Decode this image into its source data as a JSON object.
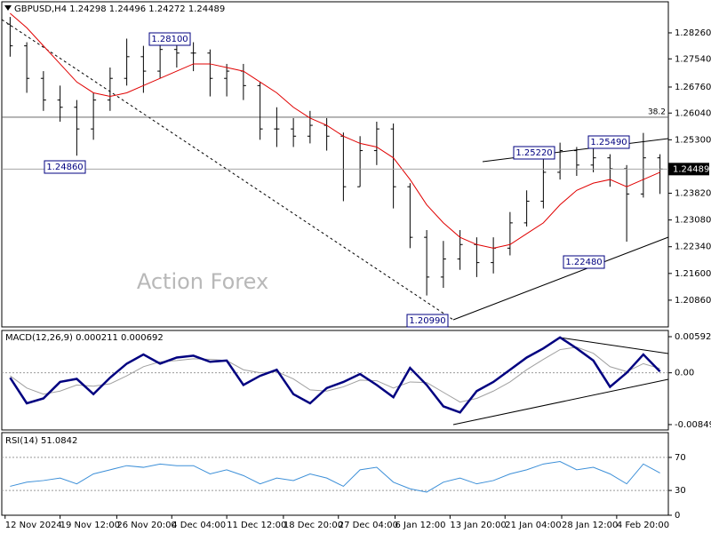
{
  "chart_data": [
    {
      "type": "ohlc",
      "title": "GBPUSD,H4  1.24298 1.24496 1.24272 1.24489",
      "watermark": "Action Forex",
      "color": "#000000",
      "open": [
        1.285,
        1.279,
        1.27,
        1.264,
        1.262,
        1.256,
        1.264,
        1.27,
        1.276,
        1.272,
        1.278,
        1.277,
        1.277,
        1.27,
        1.272,
        1.268,
        1.256,
        1.256,
        1.254,
        1.257,
        1.254,
        1.24,
        1.25,
        1.256,
        1.24,
        1.226,
        1.215,
        1.22,
        1.224,
        1.219,
        1.223,
        1.23,
        1.236,
        1.244,
        1.25,
        1.246,
        1.248,
        1.245,
        1.238,
        1.248
      ],
      "high": [
        1.287,
        1.28,
        1.272,
        1.268,
        1.264,
        1.266,
        1.273,
        1.281,
        1.279,
        1.28,
        1.281,
        1.28,
        1.278,
        1.274,
        1.274,
        1.269,
        1.262,
        1.259,
        1.261,
        1.259,
        1.255,
        1.254,
        1.258,
        1.2575,
        1.241,
        1.228,
        1.225,
        1.228,
        1.226,
        1.226,
        1.233,
        1.239,
        1.248,
        1.2522,
        1.251,
        1.251,
        1.249,
        1.246,
        1.2549,
        1.249
      ],
      "low": [
        1.276,
        1.266,
        1.261,
        1.258,
        1.2486,
        1.253,
        1.261,
        1.268,
        1.266,
        1.27,
        1.273,
        1.272,
        1.265,
        1.265,
        1.264,
        1.253,
        1.251,
        1.251,
        1.252,
        1.25,
        1.236,
        1.24,
        1.246,
        1.234,
        1.223,
        1.2099,
        1.212,
        1.217,
        1.215,
        1.216,
        1.221,
        1.229,
        1.234,
        1.242,
        1.243,
        1.244,
        1.24,
        1.2248,
        1.237,
        1.238
      ],
      "close": [
        1.279,
        1.27,
        1.264,
        1.262,
        1.256,
        1.264,
        1.27,
        1.276,
        1.272,
        1.278,
        1.277,
        1.277,
        1.27,
        1.272,
        1.268,
        1.256,
        1.256,
        1.254,
        1.257,
        1.254,
        1.24,
        1.25,
        1.256,
        1.24,
        1.226,
        1.215,
        1.22,
        1.224,
        1.219,
        1.223,
        1.23,
        1.236,
        1.244,
        1.25,
        1.246,
        1.248,
        1.245,
        1.238,
        1.248,
        1.24489
      ],
      "ma_color": "#e00000",
      "ma_values": [
        1.288,
        1.284,
        1.279,
        1.274,
        1.269,
        1.266,
        1.265,
        1.266,
        1.268,
        1.27,
        1.272,
        1.274,
        1.274,
        1.273,
        1.272,
        1.269,
        1.266,
        1.262,
        1.259,
        1.257,
        1.254,
        1.252,
        1.251,
        1.248,
        1.242,
        1.235,
        1.23,
        1.226,
        1.224,
        1.223,
        1.224,
        1.227,
        1.23,
        1.235,
        1.239,
        1.241,
        1.242,
        1.24,
        1.242,
        1.244
      ],
      "annotations": [
        {
          "value": 1.281,
          "label": "1.28100"
        },
        {
          "value": 1.2486,
          "label": "1.24860"
        },
        {
          "value": 1.2522,
          "label": "1.25220"
        },
        {
          "value": 1.2549,
          "label": "1.25490"
        },
        {
          "value": 1.2248,
          "label": "1.22480"
        },
        {
          "value": 1.2099,
          "label": "1.20990"
        }
      ],
      "fib_level": {
        "value": 1.25925,
        "label": "38.2"
      },
      "last_price": 1.24489,
      "ylim": [
        1.2012,
        1.2912
      ],
      "yticks": [
        {
          "value": 1.2826,
          "label": "1.28260"
        },
        {
          "value": 1.2754,
          "label": "1.27540"
        },
        {
          "value": 1.2676,
          "label": "1.26760"
        },
        {
          "value": 1.2604,
          "label": "1.26040"
        },
        {
          "value": 1.253,
          "label": "1.25300"
        },
        {
          "value": 1.2382,
          "label": "1.23820"
        },
        {
          "value": 1.2308,
          "label": "1.23080"
        },
        {
          "value": 1.2234,
          "label": "1.22340"
        },
        {
          "value": 1.216,
          "label": "1.21600"
        },
        {
          "value": 1.2086,
          "label": "1.20860"
        }
      ],
      "xlim": [
        -0.5,
        39.5
      ],
      "xticks": [
        {
          "value": -0.3,
          "label": "12 Nov 2024"
        },
        {
          "value": 3.0,
          "label": "19 Nov 12:00"
        },
        {
          "value": 6.4,
          "label": "26 Nov 20:00"
        },
        {
          "value": 9.7,
          "label": "4 Dec 04:00"
        },
        {
          "value": 13.0,
          "label": "11 Dec 12:00"
        },
        {
          "value": 16.4,
          "label": "18 Dec 20:00"
        },
        {
          "value": 19.7,
          "label": "27 Dec 04:00"
        },
        {
          "value": 23.1,
          "label": "6 Jan 12:00"
        },
        {
          "value": 26.4,
          "label": "13 Jan 20:00"
        },
        {
          "value": 29.7,
          "label": "21 Jan 04:00"
        },
        {
          "value": 33.1,
          "label": "28 Jan 12:00"
        },
        {
          "value": 36.4,
          "label": "4 Feb 20:00"
        }
      ]
    },
    {
      "type": "macd",
      "title": "MACD(12,26,9) 0.000211 0.000692",
      "series": [
        {
          "color": "#000080",
          "values": [
            -0.0008,
            -0.005,
            -0.0042,
            -0.0015,
            -0.001,
            -0.0035,
            -0.0008,
            0.0015,
            0.003,
            0.0015,
            0.0025,
            0.0028,
            0.0018,
            0.002,
            -0.002,
            -0.0005,
            0.0005,
            -0.0035,
            -0.005,
            -0.0025,
            -0.0015,
            -0.0002,
            -0.002,
            -0.004,
            0.0008,
            -0.002,
            -0.0055,
            -0.0065,
            -0.003,
            -0.0015,
            0.0005,
            0.0025,
            0.004,
            0.0058,
            0.004,
            0.002,
            -0.0023,
            0.0,
            0.003,
            0.000211
          ]
        },
        {
          "color": "#a0a0a0",
          "values": [
            -0.0005,
            -0.0025,
            -0.0035,
            -0.003,
            -0.002,
            -0.0022,
            -0.0018,
            -0.0005,
            0.001,
            0.0018,
            0.002,
            0.0023,
            0.0022,
            0.002,
            0.0005,
            0.0,
            0.0002,
            -0.001,
            -0.0028,
            -0.003,
            -0.0023,
            -0.0012,
            -0.0013,
            -0.0025,
            -0.0015,
            -0.0016,
            -0.0032,
            -0.0048,
            -0.0042,
            -0.003,
            -0.0015,
            0.0005,
            0.0022,
            0.0038,
            0.0042,
            0.0032,
            0.001,
            0.0002,
            0.0015,
            0.000692
          ]
        }
      ],
      "ylim": [
        -0.00937,
        0.00694
      ],
      "yticks": [
        0.005921,
        {
          "value": 0,
          "label": "0.00"
        },
        -0.00849
      ]
    },
    {
      "type": "rsi",
      "title": "RSI(14) 51.0842",
      "color": "#3c8fd8",
      "values": [
        35,
        40,
        42,
        45,
        38,
        50,
        55,
        60,
        58,
        62,
        60,
        60,
        50,
        55,
        48,
        38,
        45,
        42,
        50,
        45,
        35,
        55,
        58,
        40,
        32,
        28,
        40,
        45,
        38,
        42,
        50,
        55,
        62,
        65,
        55,
        58,
        50,
        38,
        62,
        51.0842
      ],
      "ylim": [
        0,
        100
      ],
      "yticks": [
        70,
        30,
        0
      ]
    }
  ]
}
